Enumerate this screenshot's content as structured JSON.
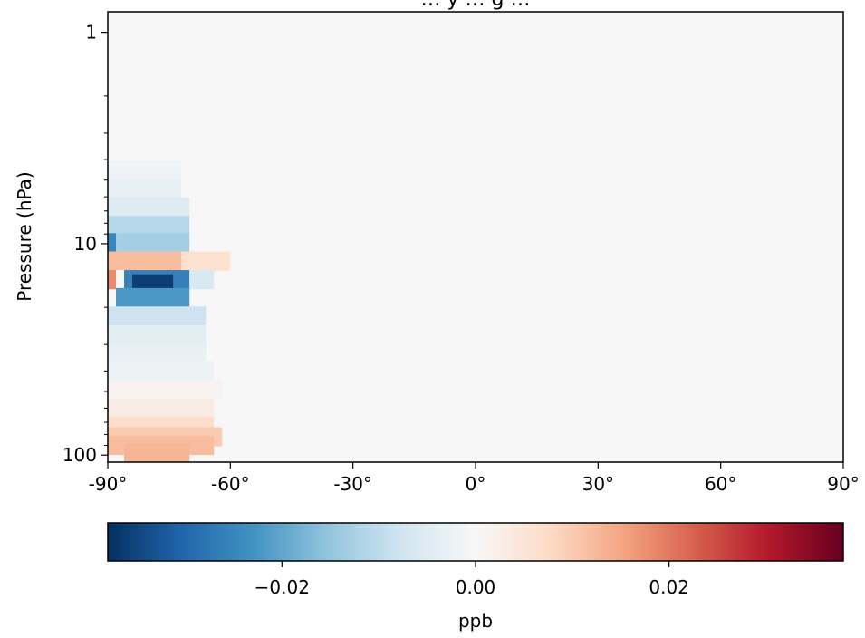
{
  "chart_data": {
    "type": "heatmap",
    "title": "… y … g …",
    "xlabel": "",
    "ylabel": "Pressure (hPa)",
    "x_axis": {
      "quantity": "latitude",
      "unit": "degrees",
      "range": [
        -90,
        90
      ],
      "ticks": [
        -90,
        -60,
        -30,
        0,
        30,
        60,
        90
      ],
      "tick_labels": [
        "-90°",
        "-60°",
        "-30°",
        "0°",
        "30°",
        "60°",
        "90°"
      ]
    },
    "y_axis": {
      "quantity": "pressure",
      "unit": "hPa",
      "scale": "log",
      "inverted": true,
      "range": [
        0.8,
        108
      ],
      "major_ticks": [
        1,
        10,
        100
      ],
      "tick_labels": [
        "1",
        "10",
        "100"
      ],
      "minor_ticks": [
        2,
        3,
        4,
        5,
        6,
        7,
        8,
        9,
        20,
        30,
        40,
        50,
        60,
        70,
        80,
        90
      ]
    },
    "colormap": "RdBu_r",
    "background_value": 0.0,
    "colorbar": {
      "label": "ppb",
      "orientation": "horizontal",
      "range": [
        -0.038,
        0.038
      ],
      "ticks": [
        -0.02,
        0.0,
        0.02
      ],
      "tick_labels": [
        "−0.02",
        "0.00",
        "0.02"
      ]
    },
    "anomaly_cells": [
      {
        "lat_range": [
          -90,
          -72
        ],
        "p": 4.5,
        "value": -0.0015
      },
      {
        "lat_range": [
          -90,
          -72
        ],
        "p": 5.5,
        "value": -0.003
      },
      {
        "lat_range": [
          -90,
          -70
        ],
        "p": 6.7,
        "value": -0.005
      },
      {
        "lat_range": [
          -90,
          -70
        ],
        "p": 8.2,
        "value": -0.011
      },
      {
        "lat_range": [
          -90,
          -88
        ],
        "p": 9.9,
        "value": -0.025
      },
      {
        "lat_range": [
          -88,
          -70
        ],
        "p": 9.9,
        "value": -0.013
      },
      {
        "lat_range": [
          -90,
          -60
        ],
        "p": 12.1,
        "value": 0.006
      },
      {
        "lat_range": [
          -90,
          -72
        ],
        "p": 12.1,
        "value": 0.012
      },
      {
        "lat_range": [
          -90,
          -88
        ],
        "p": 14.8,
        "value": 0.018
      },
      {
        "lat_range": [
          -88,
          -86
        ],
        "p": 14.8,
        "value": 0.0
      },
      {
        "lat_range": [
          -86,
          -70
        ],
        "p": 14.8,
        "value": -0.026
      },
      {
        "lat_range": [
          -84,
          -74
        ],
        "p": 15.5,
        "value": -0.036
      },
      {
        "lat_range": [
          -70,
          -64
        ],
        "p": 14.8,
        "value": -0.006
      },
      {
        "lat_range": [
          -88,
          -70
        ],
        "p": 18.0,
        "value": -0.022
      },
      {
        "lat_range": [
          -90,
          -66
        ],
        "p": 22.0,
        "value": -0.008
      },
      {
        "lat_range": [
          -90,
          -66
        ],
        "p": 27.0,
        "value": -0.004
      },
      {
        "lat_range": [
          -90,
          -66
        ],
        "p": 33.0,
        "value": -0.003
      },
      {
        "lat_range": [
          -90,
          -64
        ],
        "p": 40.0,
        "value": -0.002
      },
      {
        "lat_range": [
          -90,
          -62
        ],
        "p": 49.0,
        "value": 0.001
      },
      {
        "lat_range": [
          -90,
          -64
        ],
        "p": 60.0,
        "value": 0.003
      },
      {
        "lat_range": [
          -90,
          -64
        ],
        "p": 73.0,
        "value": 0.007
      },
      {
        "lat_range": [
          -90,
          -62
        ],
        "p": 82.0,
        "value": 0.01
      },
      {
        "lat_range": [
          -90,
          -64
        ],
        "p": 90.0,
        "value": 0.012
      },
      {
        "lat_range": [
          -86,
          -70
        ],
        "p": 98.0,
        "value": 0.013
      }
    ]
  }
}
